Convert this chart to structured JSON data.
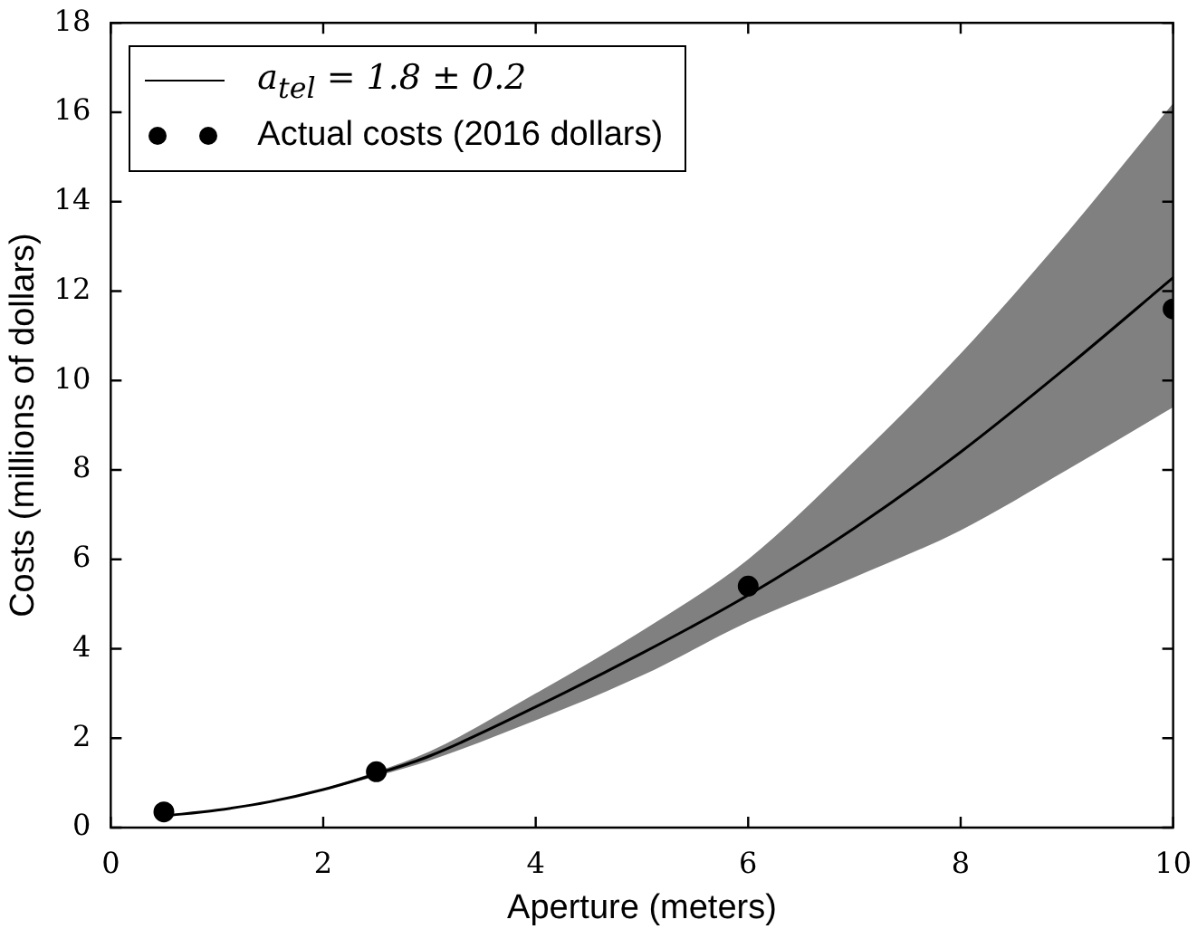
{
  "chart_data": {
    "type": "line",
    "xlabel": "Aperture (meters)",
    "ylabel": "Costs (millions of dollars)",
    "xlim": [
      0,
      10
    ],
    "xticks": [
      0,
      2,
      4,
      6,
      8,
      10
    ],
    "ylim": [
      0,
      18
    ],
    "yticks": [
      0,
      2,
      4,
      6,
      8,
      10,
      12,
      14,
      16,
      18
    ],
    "grid": false,
    "legend": "top left",
    "series": [
      {
        "name": "a$_{tel}$ = 1.8 ± 0.2",
        "type": "line",
        "color": "#000000",
        "marker": "none",
        "line_style": "solid",
        "x": [
          0.5,
          1,
          1.5,
          2,
          2.5,
          3,
          4,
          5,
          6,
          7,
          8,
          9,
          10
        ],
        "values": [
          0.26,
          0.39,
          0.58,
          0.85,
          1.2,
          1.6,
          2.7,
          3.9,
          5.2,
          6.7,
          8.4,
          10.3,
          12.3
        ],
        "lower": [
          0.25,
          0.38,
          0.57,
          0.84,
          1.15,
          1.5,
          2.4,
          3.4,
          4.6,
          5.6,
          6.65,
          8.0,
          9.4
        ],
        "upper": [
          0.27,
          0.4,
          0.59,
          0.87,
          1.25,
          1.7,
          3.0,
          4.4,
          6.0,
          8.2,
          10.6,
          13.3,
          16.2
        ]
      },
      {
        "name": "Actual costs (2016 dollars)",
        "type": "scatter",
        "color": "#000000",
        "marker": "circle",
        "x": [
          0.5,
          2.5,
          6,
          10
        ],
        "values": [
          0.35,
          1.25,
          5.4,
          11.6
        ]
      }
    ]
  }
}
